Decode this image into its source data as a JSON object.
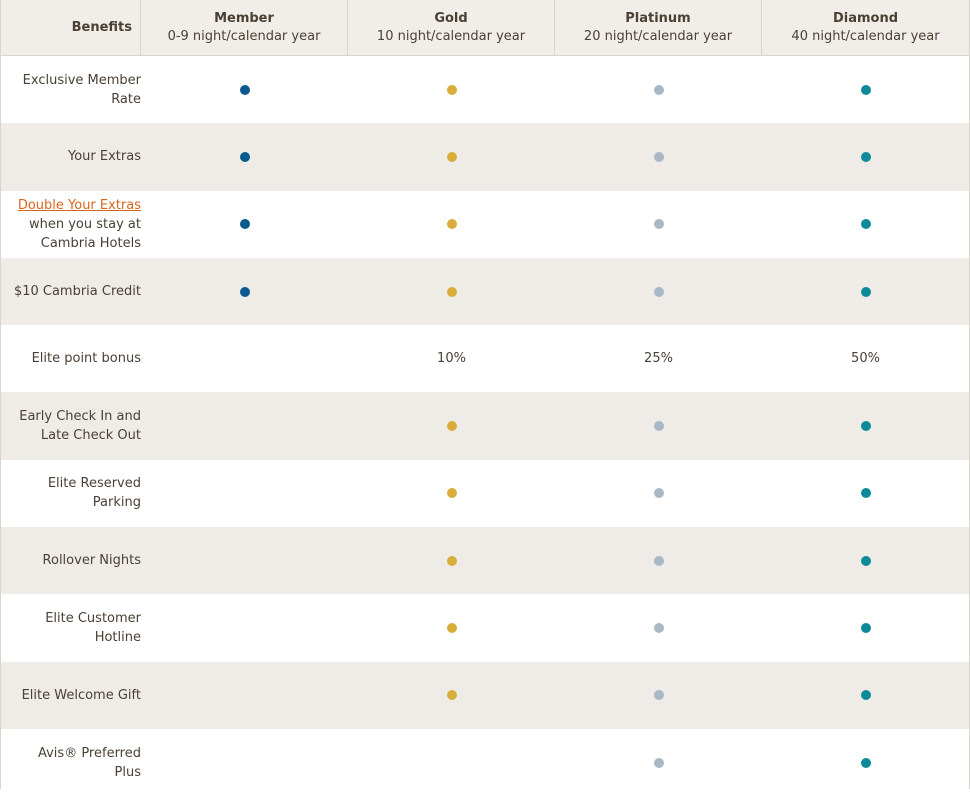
{
  "header": {
    "benefits_label": "Benefits",
    "tiers": [
      {
        "name": "Member",
        "nights": "0-9 night/calendar year",
        "color": "#0b5a8f"
      },
      {
        "name": "Gold",
        "nights": "10 night/calendar year",
        "color": "#d8ad3a"
      },
      {
        "name": "Platinum",
        "nights": "20 night/calendar year",
        "color": "#a8b8c7"
      },
      {
        "name": "Diamond",
        "nights": "40 night/calendar year",
        "color": "#0d8a99"
      }
    ]
  },
  "rows": [
    {
      "label": "Exclusive Member Rate",
      "cells": [
        "dot",
        "dot",
        "dot",
        "dot"
      ]
    },
    {
      "label": "Your Extras",
      "cells": [
        "dot",
        "dot",
        "dot",
        "dot"
      ]
    },
    {
      "label_link": "Double Your Extras",
      "label": "when you stay at Cambria Hotels",
      "cells": [
        "dot",
        "dot",
        "dot",
        "dot"
      ]
    },
    {
      "label": "$10 Cambria Credit",
      "cells": [
        "dot",
        "dot",
        "dot",
        "dot"
      ]
    },
    {
      "label": "Elite point bonus",
      "cells": [
        "",
        "10%",
        "25%",
        "50%"
      ]
    },
    {
      "label": "Early Check In and Late Check Out",
      "cells": [
        "",
        "dot",
        "dot",
        "dot"
      ]
    },
    {
      "label": "Elite Reserved Parking",
      "cells": [
        "",
        "dot",
        "dot",
        "dot"
      ]
    },
    {
      "label": "Rollover Nights",
      "cells": [
        "",
        "dot",
        "dot",
        "dot"
      ]
    },
    {
      "label": "Elite Customer Hotline",
      "cells": [
        "",
        "dot",
        "dot",
        "dot"
      ]
    },
    {
      "label": "Elite Welcome Gift",
      "cells": [
        "",
        "dot",
        "dot",
        "dot"
      ]
    },
    {
      "label": "Avis® Preferred Plus",
      "cells": [
        "",
        "",
        "dot",
        "dot"
      ]
    }
  ]
}
